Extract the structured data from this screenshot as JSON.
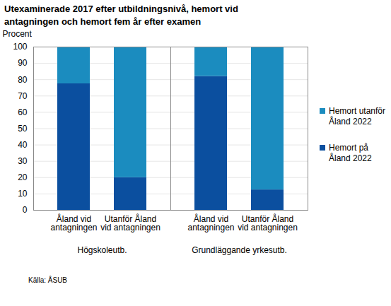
{
  "chart_data": {
    "type": "bar",
    "stacked": true,
    "title": "Utexaminerade 2017 efter utbildningsnivå, hemort vid antagningen och hemort fem år efter examen",
    "y_label": "Procent",
    "source": "Källa: ÅSUB",
    "groups": [
      "Högskoleutb.",
      "Högskoleutb.",
      "Grundläggande yrkesutb.",
      "Grundläggande yrkesutb."
    ],
    "categories": [
      "Åland vid antagningen",
      "Utanför Åland vid antagningen",
      "Åland vid antagningen",
      "Utanför Åland vid antagningen"
    ],
    "series": [
      {
        "name": "Hemort på Åland 2022",
        "color": "#0b4f9f",
        "values": [
          77.5,
          20,
          82,
          12.5
        ]
      },
      {
        "name": "Hemort utanför Åland 2022",
        "color": "#1b8cbf",
        "values": [
          22.5,
          80,
          18,
          87.5
        ]
      }
    ],
    "ylim": [
      0,
      100
    ],
    "yticks": [
      0,
      10,
      20,
      30,
      40,
      50,
      60,
      70,
      80,
      90,
      100
    ],
    "grid": true,
    "legend": "right"
  }
}
